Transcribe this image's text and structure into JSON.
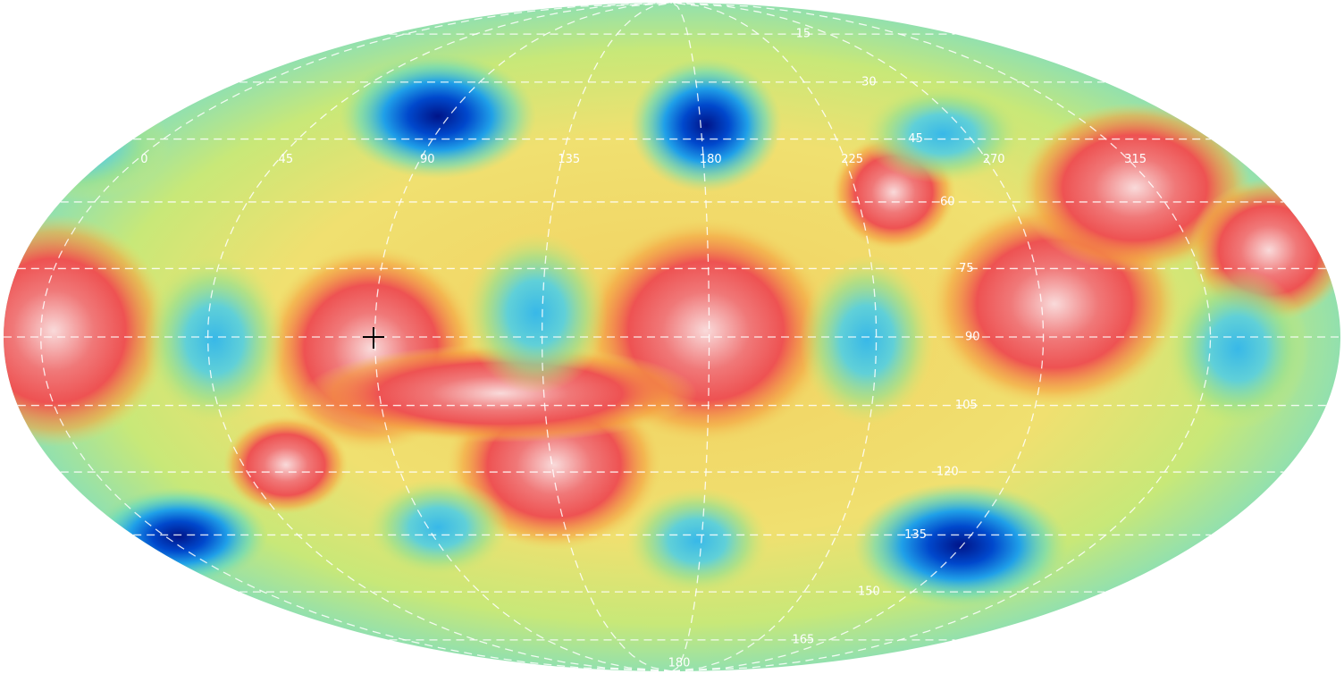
{
  "map": {
    "longitude_labels": [
      0,
      45,
      90,
      135,
      180,
      225,
      270,
      315
    ],
    "latitude_labels": [
      15,
      30,
      45,
      60,
      75,
      90,
      105,
      120,
      135,
      150,
      165,
      180
    ]
  }
}
